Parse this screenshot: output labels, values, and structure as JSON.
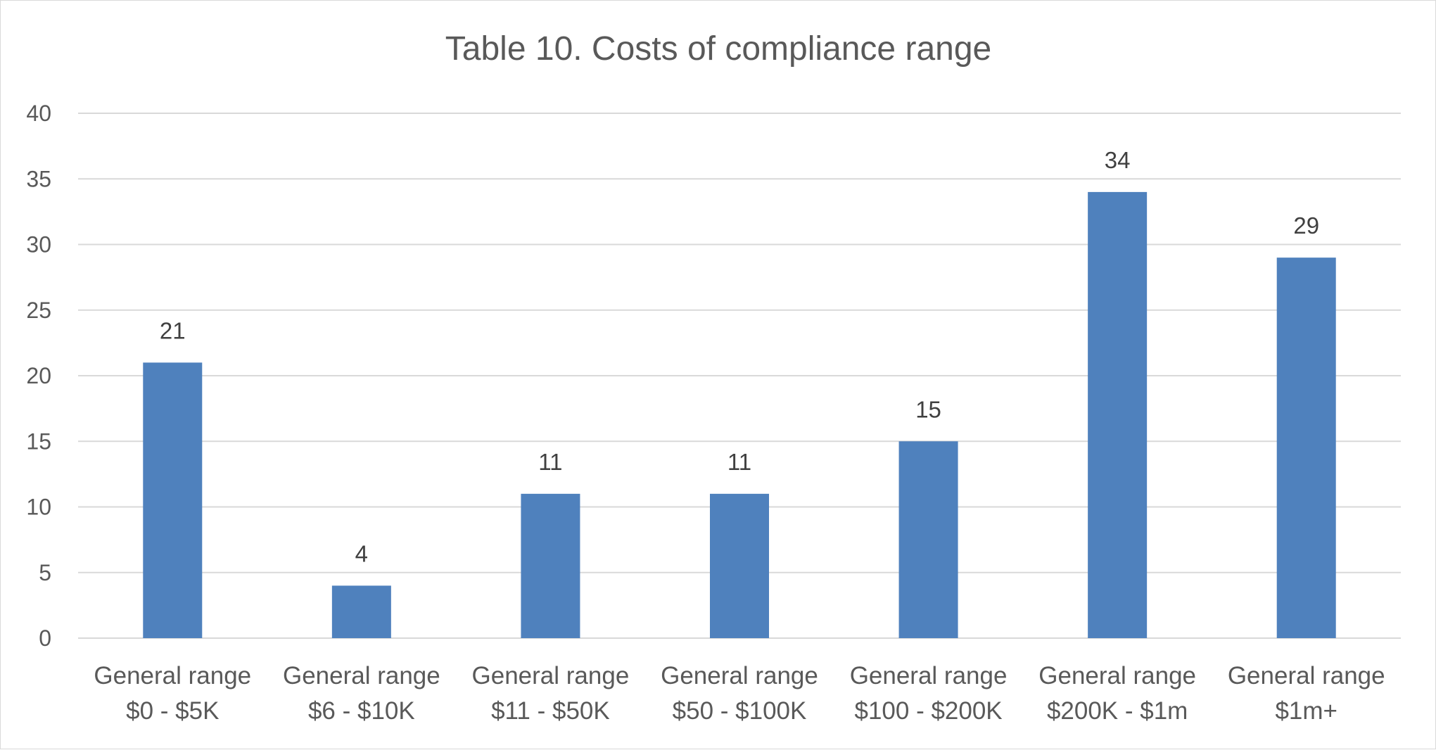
{
  "chart_data": {
    "type": "bar",
    "title": "Table 10. Costs of compliance range",
    "xlabel": "",
    "ylabel": "",
    "ylim": [
      0,
      40
    ],
    "yticks": [
      0,
      5,
      10,
      15,
      20,
      25,
      30,
      35,
      40
    ],
    "grid": true,
    "legend": "none",
    "categories": [
      [
        "General range",
        "$0 - $5K"
      ],
      [
        "General range",
        "$6 - $10K"
      ],
      [
        "General range",
        "$11 - $50K"
      ],
      [
        "General range",
        "$50 - $100K"
      ],
      [
        "General range",
        "$100 - $200K"
      ],
      [
        "General range",
        "$200K - $1m"
      ],
      [
        "General range",
        "$1m+"
      ]
    ],
    "values": [
      21,
      4,
      11,
      11,
      15,
      34,
      29
    ],
    "colors": {
      "bar": "#4f81bd",
      "grid": "#d9d9d9",
      "text": "#595959",
      "label": "#404040"
    }
  }
}
